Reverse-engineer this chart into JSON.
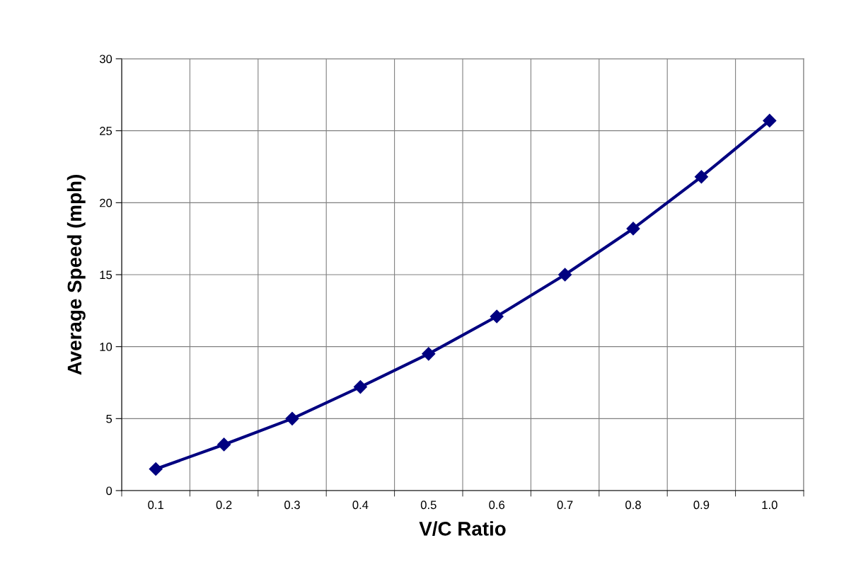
{
  "chart_data": {
    "type": "line",
    "xlabel": "V/C Ratio",
    "ylabel": "Average Speed (mph)",
    "categories": [
      "0.1",
      "0.2",
      "0.3",
      "0.4",
      "0.5",
      "0.6",
      "0.7",
      "0.8",
      "0.9",
      "1.0"
    ],
    "series": [
      {
        "color": "#000080",
        "values": [
          1.5,
          3.2,
          5.0,
          7.2,
          9.5,
          12.1,
          15.0,
          18.2,
          21.8,
          25.7
        ]
      }
    ],
    "ylim": [
      0,
      30
    ],
    "yticks": [
      0,
      5,
      10,
      15,
      20,
      25,
      30
    ],
    "grid": true,
    "marker": "diamond",
    "line_style": "solid"
  }
}
